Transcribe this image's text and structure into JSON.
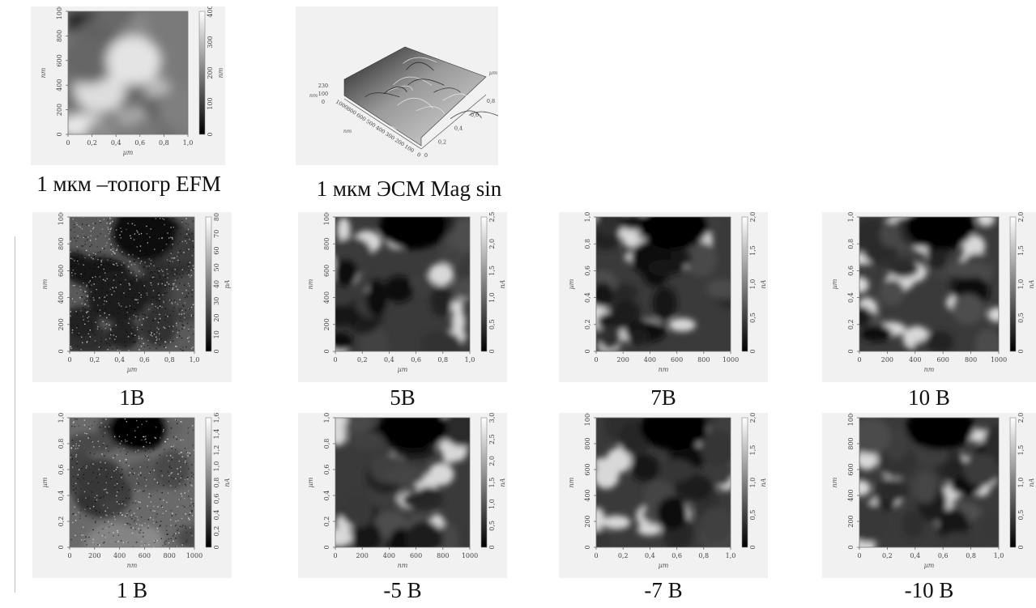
{
  "figure": {
    "top_row": [
      {
        "id": "topo",
        "caption": "1 мкм –топогр EFM",
        "y_axis_label": "nm",
        "x_axis_label": "µm",
        "y_ticks": [
          "0",
          "200",
          "400",
          "600",
          "800",
          "1000"
        ],
        "x_ticks": [
          "0",
          "0,2",
          "0,4",
          "0,6",
          "0,8",
          "1,0"
        ],
        "scale_unit": "nm",
        "scale_ticks": [
          "0",
          "100",
          "200",
          "300",
          "400"
        ],
        "colormap": "gray"
      },
      {
        "id": "esm3d",
        "caption": "1 мкм  ЭСМ Mag sin",
        "z_axis_label": "nm",
        "z_ticks": [
          "230",
          "100",
          "0"
        ],
        "y_axis_label": "nm",
        "y_ticks": [
          "1000",
          "800",
          "600",
          "500",
          "400",
          "300",
          "200",
          "100",
          "0"
        ],
        "x_axis_label": "µm",
        "x_ticks": [
          "0",
          "0,2",
          "0,4",
          "0,6",
          "0,8"
        ],
        "colormap": "gray"
      }
    ],
    "grid": [
      {
        "id": "p1B",
        "caption": "1В",
        "y_axis_label": "nm",
        "x_axis_label": "µm",
        "y_ticks": [
          "0",
          "200",
          "400",
          "600",
          "800",
          "1000"
        ],
        "x_ticks": [
          "0",
          "0,2",
          "0,4",
          "0,6",
          "0,8",
          "1,0"
        ],
        "scale_unit": "pA",
        "scale_ticks": [
          "0",
          "10",
          "20",
          "30",
          "40",
          "50",
          "60",
          "70",
          "80"
        ],
        "style": "noise"
      },
      {
        "id": "p5B",
        "caption": "5В",
        "y_axis_label": "nm",
        "x_axis_label": "µm",
        "y_ticks": [
          "0",
          "200",
          "400",
          "600",
          "800",
          "1000"
        ],
        "x_ticks": [
          "0",
          "0,2",
          "0,4",
          "0,6",
          "0,8",
          "1,0"
        ],
        "scale_unit": "nA",
        "scale_ticks": [
          "0",
          "0,5",
          "1,0",
          "1,5",
          "2,0",
          "2,5"
        ],
        "style": "cells"
      },
      {
        "id": "p7B",
        "caption": "7В",
        "y_axis_label": "µm",
        "x_axis_label": "nm",
        "y_ticks": [
          "0",
          "0,2",
          "0,4",
          "0,6",
          "0,8",
          "1,0"
        ],
        "x_ticks": [
          "0",
          "200",
          "400",
          "600",
          "800",
          "1000"
        ],
        "scale_unit": "nA",
        "scale_ticks": [
          "0",
          "0,5",
          "1,0",
          "1,5",
          "2,0"
        ],
        "style": "cells"
      },
      {
        "id": "p10B",
        "caption": "10 В",
        "y_axis_label": "µm",
        "x_axis_label": "nm",
        "y_ticks": [
          "0",
          "0,2",
          "0,4",
          "0,6",
          "0,8",
          "1,0"
        ],
        "x_ticks": [
          "0",
          "200",
          "400",
          "600",
          "800",
          "1000"
        ],
        "scale_unit": "nA",
        "scale_ticks": [
          "0",
          "0,5",
          "1,0",
          "1,5",
          "2,0"
        ],
        "style": "cells"
      },
      {
        "id": "pm1B",
        "caption": "1 В",
        "y_axis_label": "µm",
        "x_axis_label": "nm",
        "y_ticks": [
          "0",
          "0,2",
          "0,4",
          "0,6",
          "0,8",
          "1,0"
        ],
        "x_ticks": [
          "0",
          "200",
          "400",
          "600",
          "800",
          "1000"
        ],
        "scale_unit": "nA",
        "scale_ticks": [
          "0",
          "0,2",
          "0,4",
          "0,6",
          "0,8",
          "1,0",
          "1,2",
          "1,4",
          "1,6"
        ],
        "style": "grainy"
      },
      {
        "id": "pm5B",
        "caption": "-5 В",
        "y_axis_label": "µm",
        "x_axis_label": "nm",
        "y_ticks": [
          "0",
          "0,2",
          "0,4",
          "0,6",
          "0,8",
          "1,0"
        ],
        "x_ticks": [
          "0",
          "200",
          "400",
          "600",
          "800",
          "1000"
        ],
        "scale_unit": "nA",
        "scale_ticks": [
          "0",
          "0,5",
          "1,0",
          "1,5",
          "2,0",
          "2,5",
          "3,0"
        ],
        "style": "cells"
      },
      {
        "id": "pm7B",
        "caption": "-7 В",
        "y_axis_label": "nm",
        "x_axis_label": "µm",
        "y_ticks": [
          "0",
          "200",
          "400",
          "600",
          "800",
          "1000"
        ],
        "x_ticks": [
          "0",
          "0,2",
          "0,4",
          "0,6",
          "0,8",
          "1,0"
        ],
        "scale_unit": "nA",
        "scale_ticks": [
          "0",
          "0,5",
          "1,0",
          "1,5",
          "2,0"
        ],
        "style": "cells"
      },
      {
        "id": "pm10B",
        "caption": "-10 В",
        "y_axis_label": "nm",
        "x_axis_label": "µm",
        "y_ticks": [
          "0",
          "200",
          "400",
          "600",
          "800",
          "1000"
        ],
        "x_ticks": [
          "0",
          "0,2",
          "0,4",
          "0,6",
          "0,8",
          "1,0"
        ],
        "scale_unit": "nA",
        "scale_ticks": [
          "0",
          "0,5",
          "1,0",
          "1,5",
          "2,0"
        ],
        "style": "cells"
      }
    ]
  }
}
